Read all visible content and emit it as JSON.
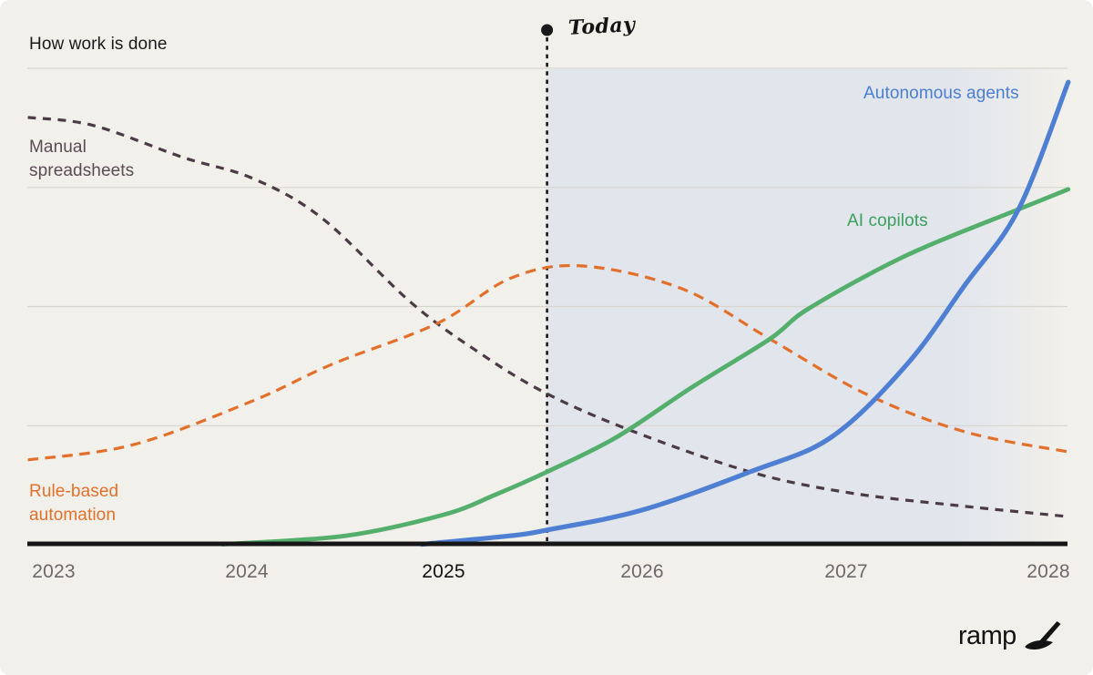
{
  "title": "How work is done",
  "today_label": "Today",
  "brand": {
    "name": "ramp"
  },
  "colors": {
    "background": "#f2f0eb",
    "shaded_region": "#e0e4ec",
    "gridline": "#d8d5cf",
    "axis": "#161616",
    "today": "#1a1a1a",
    "tick_default": "#6e686a",
    "tick_highlight": "#121212",
    "title_text": "#1a1a1a"
  },
  "x_axis": {
    "ticks": [
      "2023",
      "2024",
      "2025",
      "2026",
      "2027",
      "2028"
    ],
    "highlighted_tick": "2025"
  },
  "labels": {
    "manual": "Manual\nspreadsheets",
    "rule_based": "Rule-based\nautomation",
    "ai_copilots": "AI copilots",
    "autonomous": "Autonomous agents"
  },
  "chart_data": {
    "type": "line",
    "title": "How work is done",
    "xlabel": "",
    "ylabel": "",
    "x_ticks": [
      2023,
      2024,
      2025,
      2026,
      2027,
      2028
    ],
    "x_range": [
      2022.87,
      2028.1
    ],
    "y_range": [
      0,
      1
    ],
    "grid_values": [
      0.25,
      0.5,
      0.75,
      1.0
    ],
    "grid_on": true,
    "legend_position": "inline-labels",
    "today_x": 2025.48,
    "annotations": [
      {
        "text": "Today",
        "x": 2025.48,
        "y": 1.08
      }
    ],
    "shaded_region": {
      "from_x": 2025.48,
      "to_x": 2028.1,
      "meaning": "projection after today"
    },
    "series": [
      {
        "name": "Manual spreadsheets",
        "style": "dashed",
        "dash": "9 7.5",
        "width": 3.2,
        "color": "#4a3b44",
        "label_color": "#5a4b55",
        "points": [
          [
            2022.87,
            0.897
          ],
          [
            2023.2,
            0.88
          ],
          [
            2023.65,
            0.813
          ],
          [
            2024.0,
            0.769
          ],
          [
            2024.35,
            0.685
          ],
          [
            2024.8,
            0.507
          ],
          [
            2025.15,
            0.4
          ],
          [
            2025.48,
            0.317
          ],
          [
            2025.9,
            0.24
          ],
          [
            2026.5,
            0.153
          ],
          [
            2027.0,
            0.109
          ],
          [
            2027.55,
            0.082
          ],
          [
            2028.1,
            0.059
          ]
        ]
      },
      {
        "name": "Rule-based automation",
        "style": "dashed",
        "dash": "11.5 7.5",
        "width": 3.2,
        "color": "#e2702b",
        "label_color": "#e2702b",
        "points": [
          [
            2022.87,
            0.178
          ],
          [
            2023.4,
            0.21
          ],
          [
            2024.0,
            0.302
          ],
          [
            2024.4,
            0.379
          ],
          [
            2024.93,
            0.465
          ],
          [
            2025.3,
            0.56
          ],
          [
            2025.66,
            0.585
          ],
          [
            2026.16,
            0.537
          ],
          [
            2026.6,
            0.432
          ],
          [
            2027.08,
            0.317
          ],
          [
            2027.58,
            0.237
          ],
          [
            2028.1,
            0.195
          ]
        ]
      },
      {
        "name": "AI copilots",
        "style": "solid",
        "width": 4.8,
        "color": "#54ae6c",
        "label_color": "#3aa05c",
        "points": [
          [
            2023.85,
            0.001
          ],
          [
            2024.47,
            0.019
          ],
          [
            2024.96,
            0.063
          ],
          [
            2025.22,
            0.105
          ],
          [
            2025.48,
            0.153
          ],
          [
            2025.83,
            0.226
          ],
          [
            2026.21,
            0.331
          ],
          [
            2026.6,
            0.432
          ],
          [
            2026.8,
            0.497
          ],
          [
            2027.29,
            0.608
          ],
          [
            2027.85,
            0.704
          ],
          [
            2028.1,
            0.746
          ]
        ]
      },
      {
        "name": "Autonomous agents",
        "style": "solid",
        "width": 5.2,
        "color": "#4e7fd3",
        "label_color": "#4a7ed2",
        "points": [
          [
            2024.85,
            0.001
          ],
          [
            2025.3,
            0.019
          ],
          [
            2025.48,
            0.031
          ],
          [
            2025.96,
            0.073
          ],
          [
            2026.5,
            0.153
          ],
          [
            2026.91,
            0.226
          ],
          [
            2027.29,
            0.379
          ],
          [
            2027.58,
            0.545
          ],
          [
            2027.85,
            0.704
          ],
          [
            2028.1,
            0.971
          ]
        ]
      }
    ]
  }
}
